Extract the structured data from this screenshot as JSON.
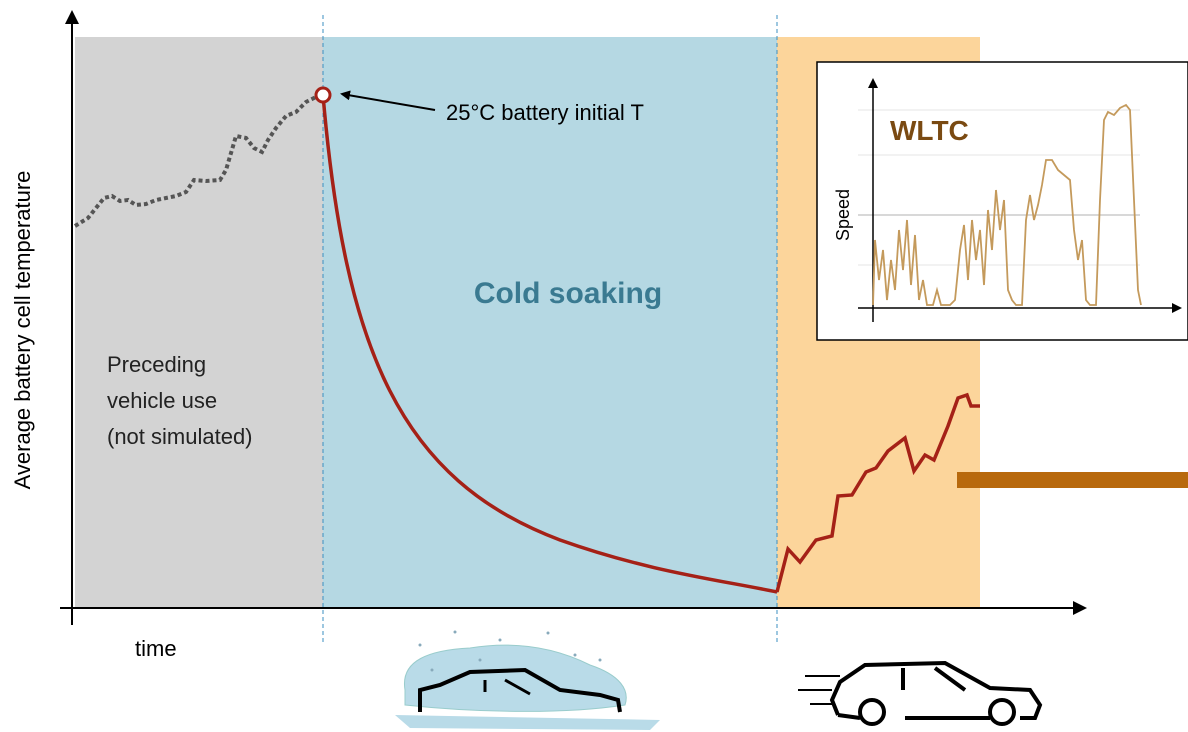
{
  "axes": {
    "y_label": "Average battery cell temperature",
    "x_label": "time"
  },
  "regions": {
    "preceding": [
      "Preceding",
      "vehicle use",
      "(not simulated)"
    ],
    "soaking": "Cold soaking"
  },
  "annotation": "25°C battery initial T",
  "inset": {
    "title": "WLTC",
    "y_label": "Speed"
  }
}
